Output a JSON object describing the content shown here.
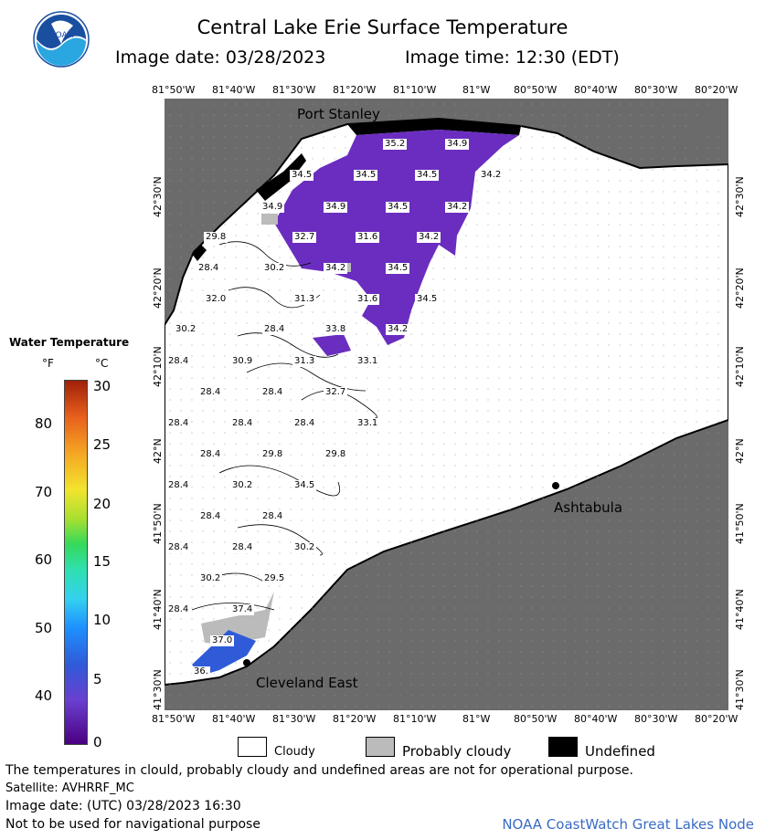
{
  "header": {
    "title": "Central Lake Erie Surface Temperature",
    "image_date_label": "Image date: 03/28/2023",
    "image_time_label": "Image time: 12:30 (EDT)"
  },
  "logo": {
    "text": "NOAA"
  },
  "axes": {
    "lon_ticks": [
      "81°50'W",
      "81°40'W",
      "81°30'W",
      "81°20'W",
      "81°10'W",
      "81°W",
      "80°50'W",
      "80°40'W",
      "80°30'W",
      "80°20'W"
    ],
    "lat_ticks": [
      "42°30'N",
      "42°20'N",
      "42°10'N",
      "42°N",
      "41°50'N",
      "41°40'N",
      "41°30'N"
    ]
  },
  "places": [
    {
      "name": "Port Stanley"
    },
    {
      "name": "Ashtabula"
    },
    {
      "name": "Cleveland East"
    }
  ],
  "temperature_labels": [
    {
      "v": "35.2"
    },
    {
      "v": "34.9"
    },
    {
      "v": "34.5"
    },
    {
      "v": "34.5"
    },
    {
      "v": "34.5"
    },
    {
      "v": "34.2"
    },
    {
      "v": "34.9"
    },
    {
      "v": "34.9"
    },
    {
      "v": "34.5"
    },
    {
      "v": "34.2"
    },
    {
      "v": "29.8"
    },
    {
      "v": "32.7"
    },
    {
      "v": "31.6"
    },
    {
      "v": "34.2"
    },
    {
      "v": "28.4"
    },
    {
      "v": "30.2"
    },
    {
      "v": "34.2"
    },
    {
      "v": "34.5"
    },
    {
      "v": "32.0"
    },
    {
      "v": "31.3"
    },
    {
      "v": "31.6"
    },
    {
      "v": "34.5"
    },
    {
      "v": "30.2"
    },
    {
      "v": "28.4"
    },
    {
      "v": "33.8"
    },
    {
      "v": "34.2"
    },
    {
      "v": "28.4"
    },
    {
      "v": "30.9"
    },
    {
      "v": "31.3"
    },
    {
      "v": "33.1"
    },
    {
      "v": "28.4"
    },
    {
      "v": "28.4"
    },
    {
      "v": "32.7"
    },
    {
      "v": "28.4"
    },
    {
      "v": "28.4"
    },
    {
      "v": "28.4"
    },
    {
      "v": "33.1"
    },
    {
      "v": "28.4"
    },
    {
      "v": "29.8"
    },
    {
      "v": "29.8"
    },
    {
      "v": "28.4"
    },
    {
      "v": "30.2"
    },
    {
      "v": "34.5"
    },
    {
      "v": "28.4"
    },
    {
      "v": "28.4"
    },
    {
      "v": "28.4"
    },
    {
      "v": "28.4"
    },
    {
      "v": "30.2"
    },
    {
      "v": "30.2"
    },
    {
      "v": "29.5"
    },
    {
      "v": "28.4"
    },
    {
      "v": "37.4"
    },
    {
      "v": "37.0"
    },
    {
      "v": "36."
    }
  ],
  "legend": {
    "title": "Water Temperature",
    "unit_f": "°F",
    "unit_c": "°C",
    "f_ticks": [
      "80",
      "70",
      "60",
      "50",
      "40"
    ],
    "c_ticks": [
      "30",
      "25",
      "20",
      "15",
      "10",
      "5",
      "0"
    ]
  },
  "key": {
    "cloudy": "Cloudy",
    "probably_cloudy": "Probably cloudy",
    "undefined": "Undefined"
  },
  "footer": {
    "note": "The temperatures in clould, probably cloudy and undefined areas are not for operational purpose.",
    "satellite": "Satellite: AVHRRF_MC",
    "utc_date": "Image date: (UTC) 03/28/2023  16:30",
    "nav_note": "Not to be used for navigational purpose",
    "node": "NOAA CoastWatch Great Lakes Node"
  },
  "colors": {
    "land": "#6b6b6b",
    "water": "#ffffff",
    "warm_water": "#6a2dbf",
    "warmest_water": "#2f5bd8",
    "probably_cloudy": "#bbbbbb",
    "undefined": "#000000",
    "node_text": "#3a6bc4"
  }
}
